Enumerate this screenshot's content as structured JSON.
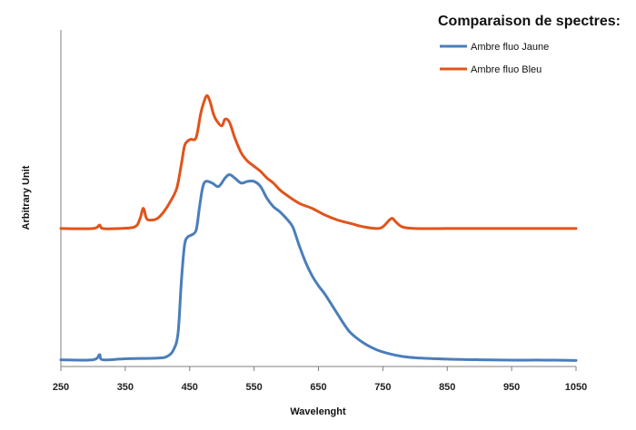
{
  "chart_data": {
    "type": "line",
    "title": "Comparaison de spectres:",
    "xlabel": "Wavelenght",
    "ylabel": "Arbitrary Unit",
    "xlim": [
      250,
      1050
    ],
    "ylim": [
      0,
      100
    ],
    "xticks": [
      "250",
      "350",
      "450",
      "550",
      "650",
      "750",
      "850",
      "950",
      "1050"
    ],
    "grid": false,
    "legend_position": "top-right",
    "series": [
      {
        "name": "Ambre fluo Jaune",
        "color": "#4a7ebb",
        "x": [
          250,
          300,
          310,
          315,
          350,
          400,
          415,
          425,
          432,
          437,
          442,
          447,
          452,
          460,
          465,
          470,
          475,
          485,
          495,
          505,
          512,
          520,
          530,
          540,
          550,
          560,
          570,
          580,
          590,
          600,
          610,
          620,
          630,
          640,
          650,
          660,
          670,
          680,
          690,
          700,
          720,
          740,
          760,
          780,
          800,
          850,
          900,
          950,
          1000,
          1050
        ],
        "y": [
          2.0,
          2.0,
          3.5,
          2.0,
          2.3,
          2.5,
          3.0,
          5.0,
          10.0,
          25.0,
          36.0,
          38.5,
          39.0,
          40.5,
          47.0,
          53.0,
          55.0,
          54.5,
          53.5,
          56.0,
          57.0,
          56.0,
          54.5,
          55.0,
          55.0,
          53.5,
          50.0,
          47.5,
          46.0,
          44.0,
          41.5,
          36.0,
          31.0,
          27.0,
          24.0,
          21.5,
          18.5,
          15.5,
          12.5,
          10.0,
          7.0,
          5.0,
          3.8,
          3.0,
          2.6,
          2.2,
          2.0,
          1.9,
          1.9,
          1.8
        ]
      },
      {
        "name": "Ambre fluo Bleu",
        "color": "#e0541b",
        "x": [
          250,
          300,
          310,
          315,
          340,
          365,
          373,
          378,
          383,
          390,
          400,
          410,
          420,
          430,
          437,
          442,
          447,
          452,
          460,
          467,
          472,
          477,
          482,
          487,
          492,
          500,
          505,
          512,
          520,
          530,
          540,
          550,
          560,
          570,
          580,
          590,
          600,
          620,
          640,
          660,
          680,
          700,
          720,
          740,
          750,
          760,
          765,
          770,
          780,
          800,
          850,
          900,
          950,
          1000,
          1050
        ],
        "y": [
          41.0,
          41.0,
          42.0,
          41.0,
          41.0,
          41.5,
          44.0,
          47.0,
          44.0,
          43.5,
          44.0,
          46.0,
          49.0,
          53.0,
          60.0,
          65.5,
          67.0,
          67.5,
          68.0,
          75.0,
          78.5,
          80.5,
          78.5,
          75.0,
          73.0,
          71.5,
          73.5,
          72.5,
          68.0,
          63.5,
          61.0,
          59.5,
          58.0,
          56.0,
          54.5,
          52.5,
          51.0,
          48.5,
          47.0,
          45.0,
          43.5,
          42.5,
          41.5,
          41.0,
          41.5,
          43.5,
          44.0,
          43.0,
          41.5,
          41.0,
          41.0,
          41.0,
          41.0,
          41.0,
          41.0
        ]
      }
    ]
  }
}
